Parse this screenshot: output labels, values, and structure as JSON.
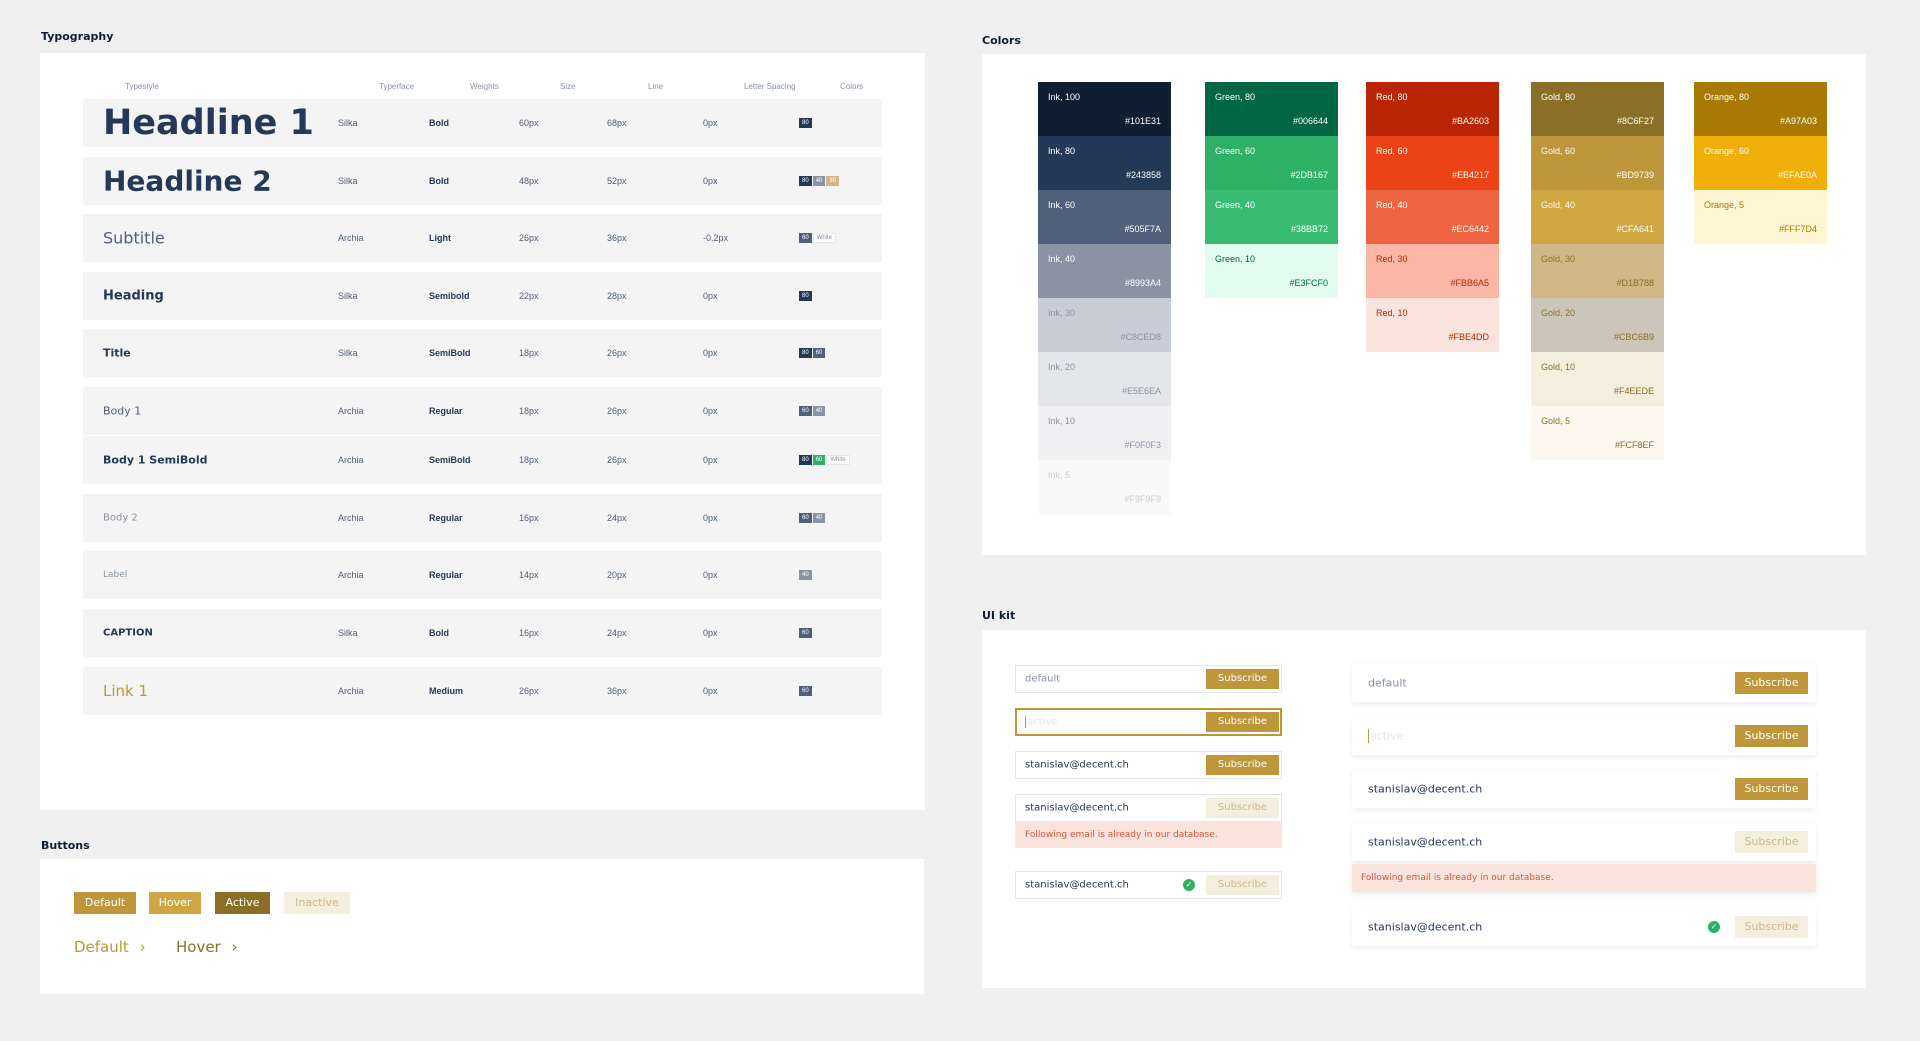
{
  "sections": {
    "typography": "Typography",
    "colors": "Colors",
    "buttons": "Buttons",
    "uikit": "UI kit"
  },
  "typography": {
    "headers": [
      "Typestyle",
      "Typerface",
      "Weights",
      "Size",
      "Line",
      "Letter Spacing",
      "Colors"
    ],
    "rows": [
      {
        "name": "Headline 1",
        "face": "Silka",
        "weight": "Bold",
        "size": "60px",
        "line": "68px",
        "spacing": "0px",
        "chips": [
          "80"
        ]
      },
      {
        "name": "Headline 2",
        "face": "Silka",
        "weight": "Bold",
        "size": "48px",
        "line": "52px",
        "spacing": "0px",
        "chips": [
          "80",
          "40",
          "30"
        ]
      },
      {
        "name": "Subtitle",
        "face": "Archia",
        "weight": "Light",
        "size": "26px",
        "line": "36px",
        "spacing": "-0.2px",
        "chips": [
          "60",
          "White"
        ]
      },
      {
        "name": "Heading",
        "face": "Silka",
        "weight": "Semibold",
        "size": "22px",
        "line": "28px",
        "spacing": "0px",
        "chips": [
          "80"
        ]
      },
      {
        "name": "Title",
        "face": "Silka",
        "weight": "SemiBold",
        "size": "18px",
        "line": "26px",
        "spacing": "0px",
        "chips": [
          "80",
          "60"
        ]
      },
      {
        "name": "Body 1",
        "face": "Archia",
        "weight": "Regular",
        "size": "18px",
        "line": "26px",
        "spacing": "0px",
        "chips": [
          "60",
          "40"
        ]
      },
      {
        "name": "Body 1 SemiBold",
        "face": "Archia",
        "weight": "SemiBold",
        "size": "18px",
        "line": "26px",
        "spacing": "0px",
        "chips": [
          "80",
          "60",
          "White"
        ]
      },
      {
        "name": "Body 2",
        "face": "Archia",
        "weight": "Regular",
        "size": "16px",
        "line": "24px",
        "spacing": "0px",
        "chips": [
          "60",
          "40"
        ]
      },
      {
        "name": "Label",
        "face": "Archia",
        "weight": "Regular",
        "size": "14px",
        "line": "20px",
        "spacing": "0px",
        "chips": [
          "40"
        ]
      },
      {
        "name": "CAPTION",
        "face": "Silka",
        "weight": "Bold",
        "size": "16px",
        "line": "24px",
        "spacing": "0px",
        "chips": [
          "60"
        ]
      },
      {
        "name": "Link 1",
        "face": "Archia",
        "weight": "Medium",
        "size": "26px",
        "line": "36px",
        "spacing": "0px",
        "chips": [
          "60"
        ]
      }
    ]
  },
  "palettes": [
    {
      "family": "ink",
      "swatches": [
        {
          "name": "Ink, 100",
          "hex": "#101E31",
          "fg": "#ffffff"
        },
        {
          "name": "Ink, 80",
          "hex": "#243858",
          "fg": "#ffffff"
        },
        {
          "name": "Ink, 60",
          "hex": "#505F7A",
          "fg": "#ffffff"
        },
        {
          "name": "Ink, 40",
          "hex": "#8993A4",
          "fg": "#ffffff"
        },
        {
          "name": "Ink, 30",
          "hex": "#C8CED8",
          "fg": "#8993a4"
        },
        {
          "name": "Ink, 20",
          "hex": "#E5E6EA",
          "fg": "#8993a4"
        },
        {
          "name": "Ink, 10",
          "hex": "#F0F0F3",
          "fg": "#8993a4"
        },
        {
          "name": "Ink, 5",
          "hex": "#F9F9F9",
          "fg": "#c8ced8"
        }
      ]
    },
    {
      "family": "green",
      "swatches": [
        {
          "name": "Green, 80",
          "hex": "#006644",
          "fg": "#ffffff"
        },
        {
          "name": "Green, 60",
          "hex": "#2DB167",
          "fg": "#ffffff"
        },
        {
          "name": "Green, 40",
          "hex": "#38BB72",
          "fg": "#ffffff"
        },
        {
          "name": "Green, 10",
          "hex": "#E3FCF0",
          "fg": "#006644"
        }
      ]
    },
    {
      "family": "red",
      "swatches": [
        {
          "name": "Red, 80",
          "hex": "#BA2603",
          "fg": "#ffffff"
        },
        {
          "name": "Red, 60",
          "hex": "#EB4217",
          "fg": "#ffffff"
        },
        {
          "name": "Red, 40",
          "hex": "#EC6442",
          "fg": "#ffffff"
        },
        {
          "name": "Red, 30",
          "hex": "#FBB6A5",
          "fg": "#ba2603"
        },
        {
          "name": "Red, 10",
          "hex": "#FBE4DD",
          "fg": "#ba2603"
        }
      ]
    },
    {
      "family": "gold",
      "swatches": [
        {
          "name": "Gold, 80",
          "hex": "#8C6F27",
          "fg": "#ffffff"
        },
        {
          "name": "Gold, 60",
          "hex": "#BD9739",
          "fg": "#ffffff"
        },
        {
          "name": "Gold, 40",
          "hex": "#CFA641",
          "fg": "#ffffff"
        },
        {
          "name": "Gold, 30",
          "hex": "#D1B788",
          "fg": "#8c6f27"
        },
        {
          "name": "Gold, 20",
          "hex": "#CBC6B9",
          "fg": "#8c6f27"
        },
        {
          "name": "Gold, 10",
          "hex": "#F4EEDE",
          "fg": "#8c6f27"
        },
        {
          "name": "Gold, 5",
          "hex": "#FCF8EF",
          "fg": "#8c6f27"
        }
      ]
    },
    {
      "family": "orange",
      "swatches": [
        {
          "name": "Orange, 80",
          "hex": "#A97A03",
          "fg": "#ffffff"
        },
        {
          "name": "Orange, 60",
          "hex": "#EFAE0A",
          "fg": "#ffffff"
        },
        {
          "name": "Orange, 5",
          "hex": "#FFF7D4",
          "fg": "#a97a03"
        }
      ]
    }
  ],
  "buttons": {
    "default": "Default",
    "hover": "Hover",
    "active": "Active",
    "inactive": "Inactive",
    "link_default": "Default",
    "link_hover": "Hover",
    "chevron": "›"
  },
  "uikit": {
    "placeholder_default": "default",
    "placeholder_active": "active",
    "email": "stanislav@decent.ch",
    "subscribe": "Subscribe",
    "error": "Following email is already in our database.",
    "check": "✓"
  },
  "colors": {
    "gold": "#BD9739",
    "gold_hover": "#CFA641",
    "gold_active": "#8C6F27",
    "gold_inactive": "#F4EEDE",
    "inactive_text": "#D1B788",
    "ink80": "#243858",
    "ink60": "#505F7A",
    "ink40": "#8993A4"
  }
}
